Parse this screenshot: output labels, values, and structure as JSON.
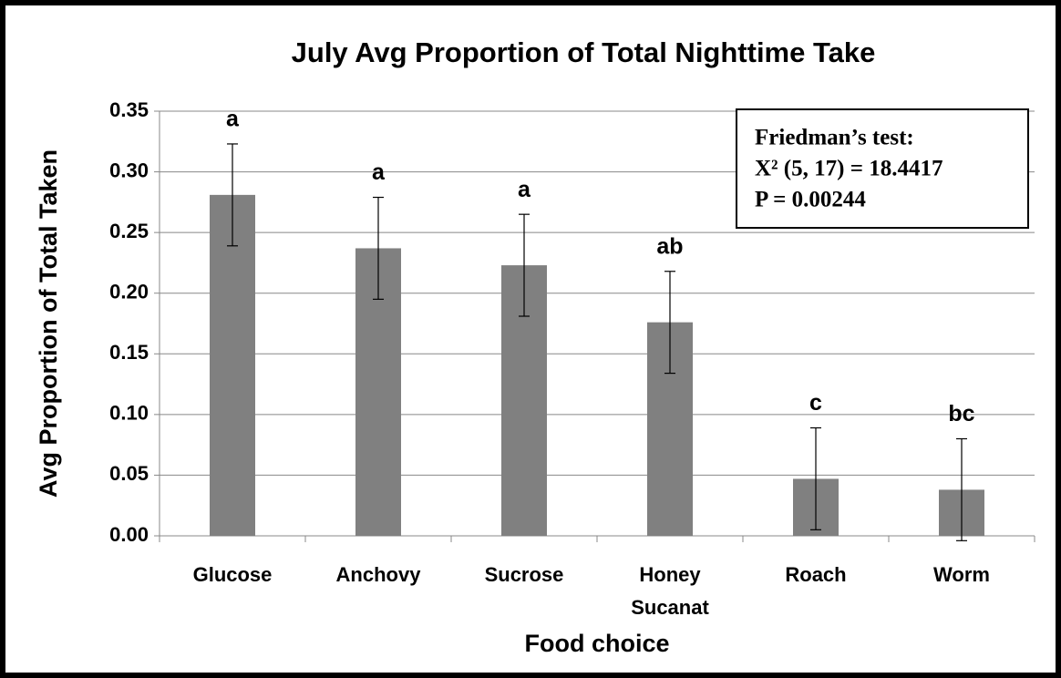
{
  "chart_data": {
    "type": "bar",
    "title": "July Avg Proportion of Total Nighttime Take",
    "x_label": "Food choice",
    "y_label": "Avg Proportion of Total Taken",
    "categories": [
      "Glucose",
      "Anchovy",
      "Sucrose",
      "Honey Sucanat",
      "Roach",
      "Worm"
    ],
    "values": [
      0.281,
      0.237,
      0.223,
      0.176,
      0.047,
      0.038
    ],
    "errors": [
      0.042,
      0.042,
      0.042,
      0.042,
      0.042,
      0.042
    ],
    "letters": [
      "a",
      "a",
      "a",
      "ab",
      "c",
      "bc"
    ],
    "color": "#808080",
    "ylim": [
      0,
      0.35
    ],
    "yticks": [
      {
        "value": 0,
        "label": "0.00"
      },
      {
        "value": 0.05,
        "label": "0.05"
      },
      {
        "value": 0.1,
        "label": "0.10"
      },
      {
        "value": 0.15,
        "label": "0.15"
      },
      {
        "value": 0.2,
        "label": "0.20"
      },
      {
        "value": 0.25,
        "label": "0.25"
      },
      {
        "value": 0.3,
        "label": "0.30"
      },
      {
        "value": 0.35,
        "label": "0.35"
      }
    ],
    "grid": true,
    "annotation": [
      "Friedman’s test:",
      "X² (5, 17) = 18.4417",
      "P = 0.00244"
    ]
  }
}
